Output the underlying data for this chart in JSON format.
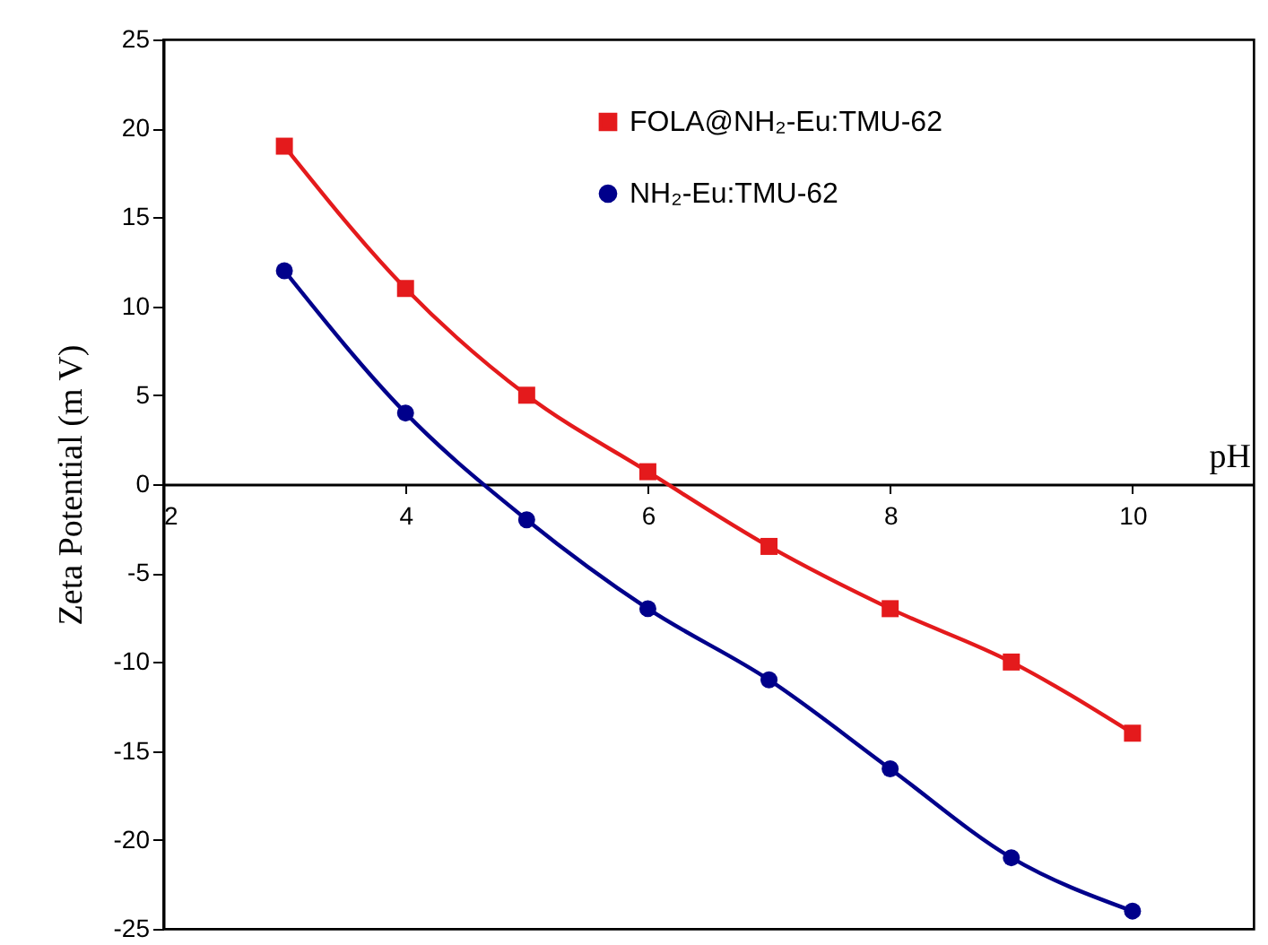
{
  "chart_data": {
    "type": "line",
    "xlabel": "pH",
    "ylabel": "Zeta Potential (m V)",
    "x": [
      3,
      4,
      5,
      6,
      7,
      8,
      9,
      10
    ],
    "series": [
      {
        "name": "FOLA@NH₂-Eu:TMU-62",
        "color": "#e41a1c",
        "marker": "square",
        "values": [
          19,
          11,
          5,
          0.7,
          -3.5,
          -7,
          -10,
          -14
        ]
      },
      {
        "name": "NH₂-Eu:TMU-62",
        "color": "#00008b",
        "marker": "circle",
        "values": [
          12,
          4,
          -2,
          -7,
          -11,
          -16,
          -21,
          -24
        ]
      }
    ],
    "xlim": [
      2,
      11
    ],
    "xticks": [
      2,
      4,
      6,
      8,
      10
    ],
    "ylim": [
      -25,
      25
    ],
    "yticks": [
      -25,
      -20,
      -15,
      -10,
      -5,
      0,
      5,
      10,
      15,
      20,
      25
    ],
    "grid": false,
    "legend": "top",
    "line_style": "solid"
  }
}
